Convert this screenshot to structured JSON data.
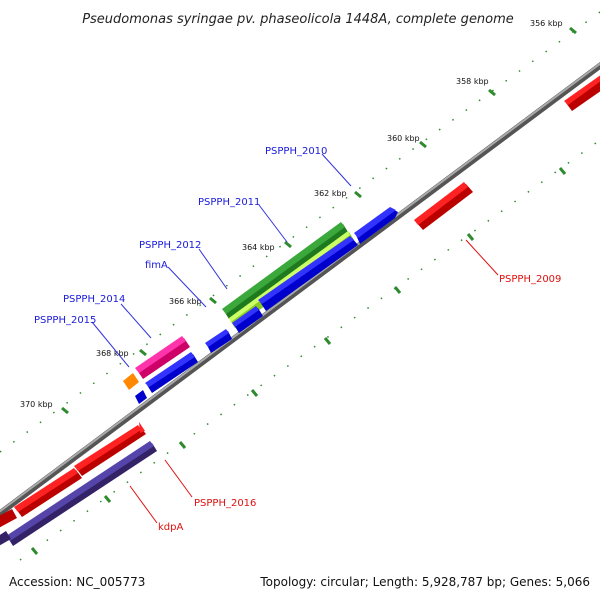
{
  "title": "Pseudomonas syringae pv. phaseolicola 1448A, complete genome",
  "footer": {
    "accession": "Accession: NC_005773",
    "summary": "Topology: circular; Length: 5,928,787 bp; Genes: 5,066"
  },
  "ticks": [
    "356 kbp",
    "358 kbp",
    "360 kbp",
    "362 kbp",
    "364 kbp",
    "366 kbp",
    "368 kbp",
    "370 kbp"
  ],
  "labels": {
    "PSPPH_2010": "PSPPH_2010",
    "PSPPH_2011": "PSPPH_2011",
    "PSPPH_2012": "PSPPH_2012",
    "fimA": "fimA",
    "PSPPH_2014": "PSPPH_2014",
    "PSPPH_2015": "PSPPH_2015",
    "PSPPH_2009": "PSPPH_2009",
    "PSPPH_2016": "PSPPH_2016",
    "kdpA": "kdpA"
  },
  "colors": {
    "backbone": "#888888",
    "blue": "#1111ee",
    "red": "#ee0000",
    "green": "#228b22",
    "lightgreen": "#aaee44",
    "pink": "#ee1188",
    "orange": "#ff8800",
    "slate": "#443388",
    "tick": "#2e8b2e"
  }
}
